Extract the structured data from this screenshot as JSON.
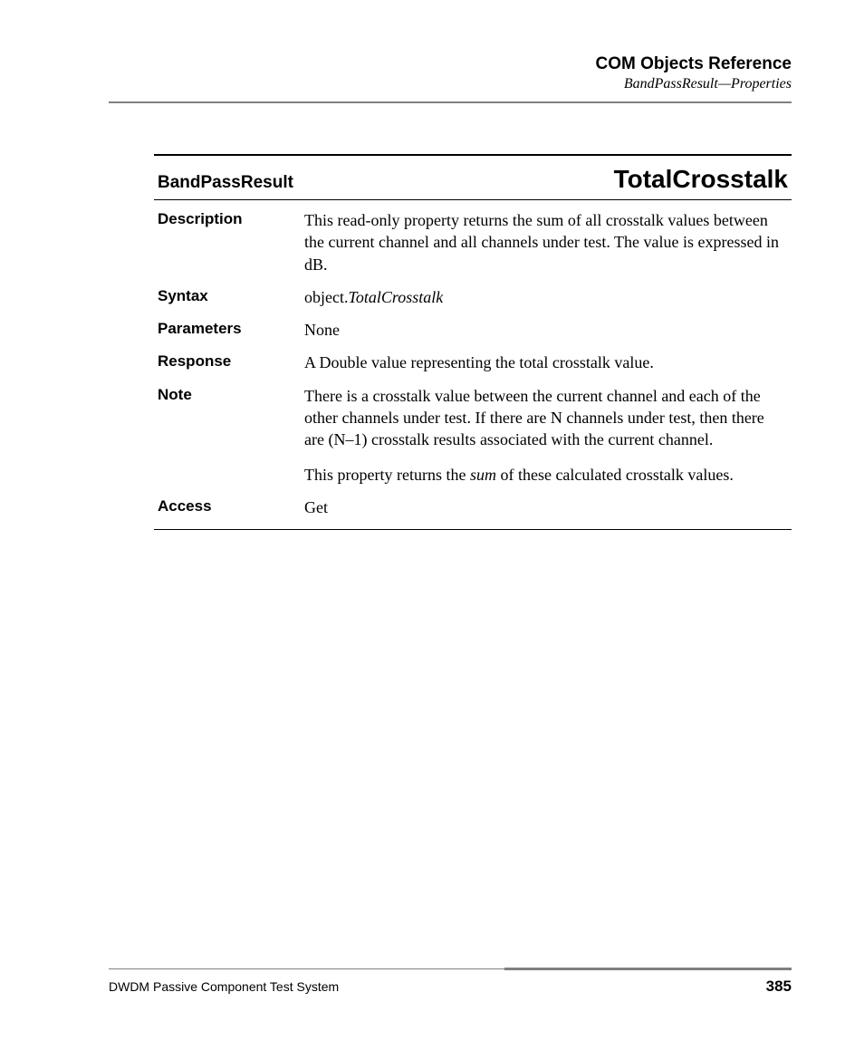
{
  "header": {
    "title": "COM Objects Reference",
    "subtitle": "BandPassResult—Properties"
  },
  "tableHeader": {
    "object": "BandPassResult",
    "property": "TotalCrosstalk"
  },
  "rows": {
    "description": {
      "label": "Description",
      "value": "This read-only property returns the sum of all crosstalk values between the current channel and all channels under test. The value is expressed in dB."
    },
    "syntax": {
      "label": "Syntax",
      "prefix": "object.",
      "italic": "TotalCrosstalk"
    },
    "parameters": {
      "label": "Parameters",
      "value": "None"
    },
    "response": {
      "label": "Response",
      "value": " A Double value representing the total crosstalk value."
    },
    "note": {
      "label": "Note",
      "value": "There is a crosstalk value between the current channel and each of the other channels under test. If there are N channels under test, then there are (N–1) crosstalk results associated with the current channel.",
      "extraPrefix": "This property returns the ",
      "extraItalic": "sum",
      "extraSuffix": " of these calculated crosstalk values."
    },
    "access": {
      "label": "Access",
      "value": "Get"
    }
  },
  "footer": {
    "text": "DWDM Passive Component Test System",
    "page": "385"
  }
}
